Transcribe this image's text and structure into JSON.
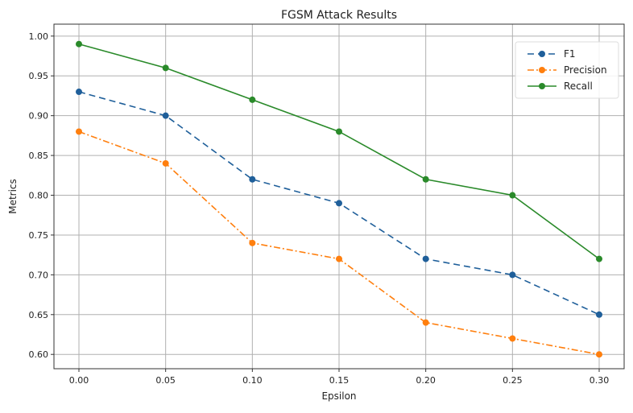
{
  "chart_data": {
    "type": "line",
    "title": "FGSM Attack Results",
    "xlabel": "Epsilon",
    "ylabel": "Metrics",
    "x": [
      0.0,
      0.05,
      0.1,
      0.15,
      0.2,
      0.25,
      0.3
    ],
    "xticks": [
      "0.00",
      "0.05",
      "0.10",
      "0.15",
      "0.20",
      "0.25",
      "0.30"
    ],
    "yticks": [
      "0.60",
      "0.65",
      "0.70",
      "0.75",
      "0.80",
      "0.85",
      "0.90",
      "0.95",
      "1.00"
    ],
    "xlim": [
      -0.0144,
      0.3144
    ],
    "ylim": [
      0.582,
      1.015
    ],
    "grid": true,
    "legend_position": "top-right",
    "series": [
      {
        "name": "F1",
        "color": "#1f5f9a",
        "dash": "8,5",
        "values": [
          0.93,
          0.9,
          0.82,
          0.79,
          0.72,
          0.7,
          0.65
        ]
      },
      {
        "name": "Precision",
        "color": "#ff7f0e",
        "dash": "8,3,2,3",
        "values": [
          0.88,
          0.84,
          0.74,
          0.72,
          0.64,
          0.62,
          0.6
        ]
      },
      {
        "name": "Recall",
        "color": "#2a8a2a",
        "dash": "",
        "values": [
          0.99,
          0.96,
          0.92,
          0.88,
          0.82,
          0.8,
          0.72
        ]
      }
    ]
  }
}
